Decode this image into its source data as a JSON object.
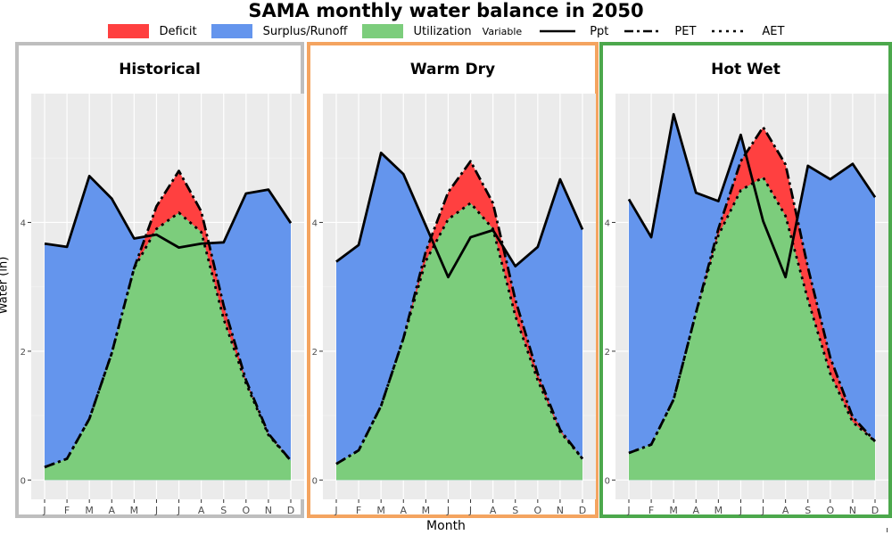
{
  "chart_data": {
    "type": "area",
    "title": "SAMA monthly water balance in 2050",
    "xlabel": "Month",
    "ylabel": "Water (in)",
    "ylim": [
      -0.3,
      6.0
    ],
    "yticks": [
      0,
      2,
      4
    ],
    "grid": true,
    "legend_position": "top",
    "legend": {
      "fill": [
        {
          "label": "Deficit",
          "color": "#ff4040"
        },
        {
          "label": "Surplus/Runoff",
          "color": "#6495ed"
        },
        {
          "label": "Utilization",
          "color": "#7ccd7c"
        }
      ],
      "title": "Variable",
      "lines": [
        {
          "label": "Ppt",
          "style": "solid"
        },
        {
          "label": "PET",
          "style": "dashed"
        },
        {
          "label": "AET",
          "style": "dotted"
        }
      ]
    },
    "categories": [
      "J",
      "F",
      "M",
      "A",
      "M",
      "J",
      "J",
      "A",
      "S",
      "O",
      "N",
      "D"
    ],
    "panels": [
      {
        "title": "Historical",
        "ppt": [
          3.67,
          3.62,
          4.72,
          4.37,
          3.75,
          3.81,
          3.61,
          3.67,
          3.69,
          4.45,
          4.51,
          3.99
        ],
        "pet": [
          0.2,
          0.33,
          0.95,
          1.97,
          3.29,
          4.25,
          4.8,
          4.17,
          2.71,
          1.55,
          0.72,
          0.3
        ],
        "aet": [
          0.2,
          0.33,
          0.95,
          1.97,
          3.29,
          3.9,
          4.15,
          3.85,
          2.5,
          1.5,
          0.7,
          0.3
        ]
      },
      {
        "title": "Warm Dry",
        "ppt": [
          3.39,
          3.65,
          5.08,
          4.75,
          3.95,
          3.15,
          3.77,
          3.88,
          3.32,
          3.62,
          4.67,
          3.89
        ],
        "pet": [
          0.25,
          0.46,
          1.15,
          2.2,
          3.55,
          4.47,
          4.95,
          4.3,
          2.8,
          1.65,
          0.78,
          0.33
        ],
        "aet": [
          0.25,
          0.46,
          1.15,
          2.2,
          3.4,
          4.05,
          4.3,
          3.9,
          2.55,
          1.55,
          0.75,
          0.33
        ]
      },
      {
        "title": "Hot Wet",
        "ppt": [
          4.36,
          3.77,
          5.68,
          4.46,
          4.33,
          5.36,
          4.02,
          3.15,
          4.88,
          4.67,
          4.91,
          4.39
        ],
        "pet": [
          0.42,
          0.55,
          1.25,
          2.6,
          3.9,
          4.95,
          5.48,
          4.9,
          3.3,
          1.9,
          0.98,
          0.6
        ],
        "aet": [
          0.42,
          0.55,
          1.25,
          2.6,
          3.8,
          4.5,
          4.7,
          4.1,
          2.8,
          1.65,
          0.9,
          0.6
        ]
      }
    ]
  }
}
